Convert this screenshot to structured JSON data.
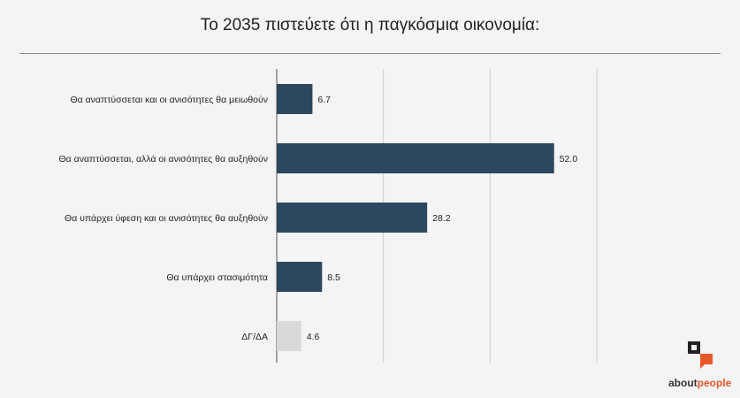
{
  "title": "Το 2035 πιστεύετε ότι η παγκόσμια οικονομία:",
  "brand": {
    "part1": "about",
    "part2": "people",
    "accent_color": "#e8572a"
  },
  "colors": {
    "bar": "#2d475f",
    "bar_muted": "#d9d9d9",
    "grid": "#cccccc",
    "axis": "#555555"
  },
  "chart_data": {
    "type": "bar",
    "orientation": "horizontal",
    "title": "Το 2035 πιστεύετε ότι η παγκόσμια οικονομία:",
    "categories": [
      "Θα αναπτύσσεται και οι ανισότητες θα μειωθούν",
      "Θα αναπτύσσεται, αλλά οι ανισότητες θα αυξηθούν",
      "Θα υπάρχει ύφεση και οι ανισότητες θα αυξηθούν",
      "Θα υπάρχει στασιμότητα",
      "ΔΓ/ΔΑ"
    ],
    "values": [
      6.7,
      52.0,
      28.2,
      8.5,
      4.6
    ],
    "value_labels": [
      "6.7",
      "52.0",
      "28.2",
      "8.5",
      "4.6"
    ],
    "muted": [
      false,
      false,
      false,
      false,
      true
    ],
    "xlim": [
      0,
      60
    ],
    "grid": true,
    "grid_ticks": [
      20,
      40,
      60
    ]
  }
}
